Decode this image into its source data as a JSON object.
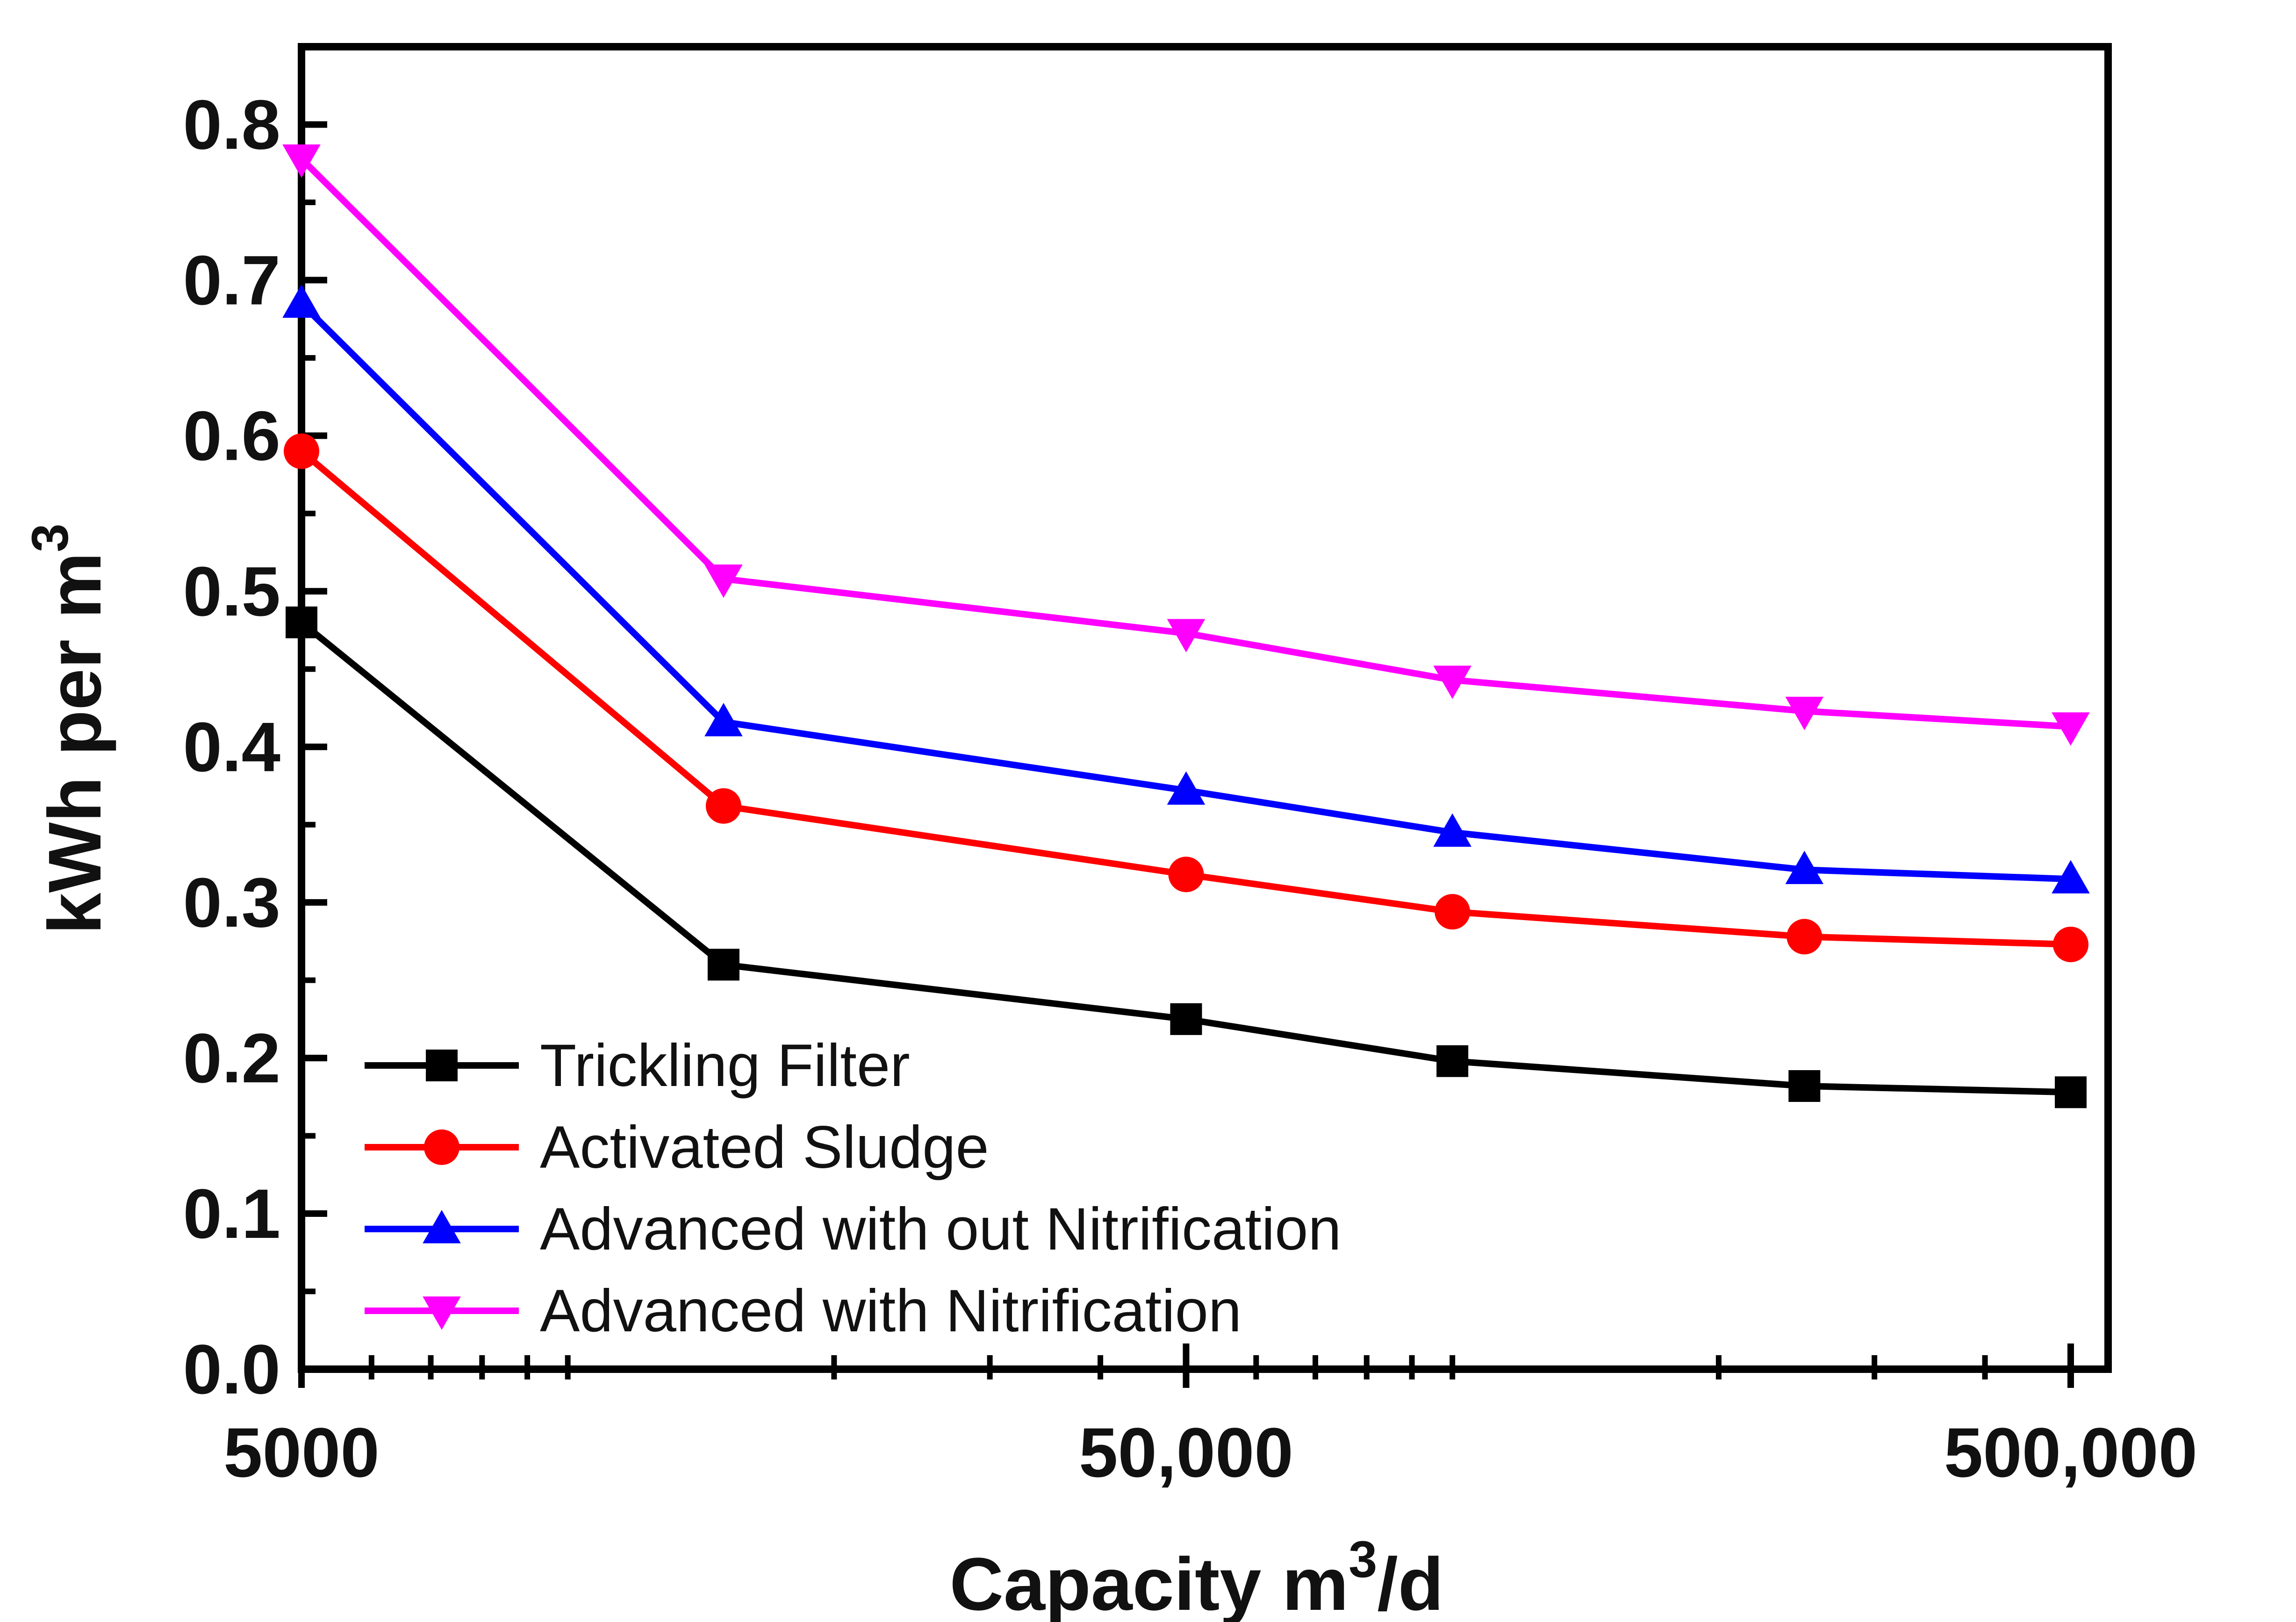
{
  "chart_data": {
    "type": "line",
    "x_scale": "log",
    "x": [
      5000,
      15000,
      50000,
      100000,
      250000,
      500000
    ],
    "xlim": [
      5000,
      500000
    ],
    "x_tick_labels": [
      {
        "value": 5000,
        "label": "5000"
      },
      {
        "value": 50000,
        "label": "50,000"
      },
      {
        "value": 500000,
        "label": "500,000"
      }
    ],
    "ylim": [
      0.0,
      0.85
    ],
    "y_ticks": [
      "0.0",
      "0.1",
      "0.2",
      "0.3",
      "0.4",
      "0.5",
      "0.6",
      "0.7",
      "0.8"
    ],
    "xlabel": "Capacity m",
    "xlabel_sup": "3",
    "xlabel_suffix": "/d",
    "ylabel": "kWh per m",
    "ylabel_sup": "3",
    "grid": false,
    "legend_position": "bottom-left",
    "series": [
      {
        "name": "Trickling Filter",
        "color": "#000000",
        "marker": "square",
        "values": [
          0.48,
          0.26,
          0.225,
          0.198,
          0.182,
          0.178
        ]
      },
      {
        "name": "Activated Sludge",
        "color": "#ff0000",
        "marker": "circle",
        "values": [
          0.59,
          0.362,
          0.318,
          0.294,
          0.278,
          0.273
        ]
      },
      {
        "name": "Advanced with out Nitrification",
        "color": "#0000ff",
        "marker": "triangle-up",
        "values": [
          0.685,
          0.416,
          0.372,
          0.345,
          0.321,
          0.315
        ]
      },
      {
        "name": "Advanced with Nitrification",
        "color": "#ff00ff",
        "marker": "triangle-down",
        "values": [
          0.778,
          0.508,
          0.473,
          0.443,
          0.423,
          0.413
        ]
      }
    ]
  }
}
